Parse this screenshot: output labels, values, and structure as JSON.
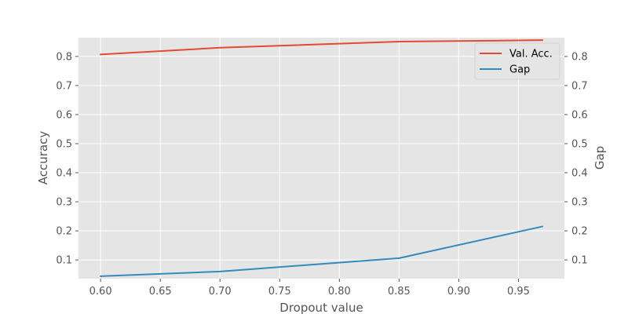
{
  "chart_data": {
    "type": "line",
    "x": [
      0.6,
      0.7,
      0.85,
      0.97
    ],
    "series": [
      {
        "name": "Val. Acc.",
        "axis": "left",
        "color": "#E24A33",
        "values": [
          0.807,
          0.83,
          0.851,
          0.856
        ]
      },
      {
        "name": "Gap",
        "axis": "right",
        "color": "#348ABD",
        "values": [
          0.044,
          0.06,
          0.106,
          0.215
        ]
      }
    ],
    "xlabel": "Dropout value",
    "ylabel": "Accuracy",
    "y2label": "Gap",
    "xlim": [
      0.5815,
      0.9885
    ],
    "ylim": [
      0.0354,
      0.8646
    ],
    "y2lim": [
      0.0354,
      0.8646
    ],
    "xticks": [
      0.6,
      0.65,
      0.7,
      0.75,
      0.8,
      0.85,
      0.9,
      0.95
    ],
    "xtick_labels": [
      "0.60",
      "0.65",
      "0.70",
      "0.75",
      "0.80",
      "0.85",
      "0.90",
      "0.95"
    ],
    "yticks": [
      0.1,
      0.2,
      0.3,
      0.4,
      0.5,
      0.6,
      0.7,
      0.8
    ],
    "ytick_labels": [
      "0.1",
      "0.2",
      "0.3",
      "0.4",
      "0.5",
      "0.6",
      "0.7",
      "0.8"
    ],
    "y2ticks": [
      0.1,
      0.2,
      0.3,
      0.4,
      0.5,
      0.6,
      0.7,
      0.8
    ],
    "y2tick_labels": [
      "0.1",
      "0.2",
      "0.3",
      "0.4",
      "0.5",
      "0.6",
      "0.7",
      "0.8"
    ],
    "grid": true,
    "legend_position": "top-right",
    "background_color": "#E5E5E5",
    "grid_color": "#FFFFFF",
    "text_color": "#555555"
  }
}
